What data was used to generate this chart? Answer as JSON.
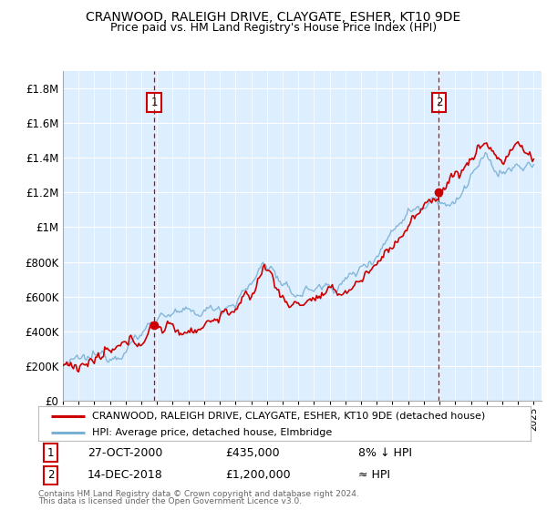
{
  "title1": "CRANWOOD, RALEIGH DRIVE, CLAYGATE, ESHER, KT10 9DE",
  "title2": "Price paid vs. HM Land Registry's House Price Index (HPI)",
  "legend_line1": "CRANWOOD, RALEIGH DRIVE, CLAYGATE, ESHER, KT10 9DE (detached house)",
  "legend_line2": "HPI: Average price, detached house, Elmbridge",
  "ann1_label": "1",
  "ann1_date": "27-OCT-2000",
  "ann1_price": "£435,000",
  "ann1_note": "8% ↓ HPI",
  "ann1_year": 2000.83,
  "ann1_value": 435000,
  "ann2_label": "2",
  "ann2_date": "14-DEC-2018",
  "ann2_price": "£1,200,000",
  "ann2_note": "≈ HPI",
  "ann2_year": 2018.96,
  "ann2_value": 1200000,
  "footnote1": "Contains HM Land Registry data © Crown copyright and database right 2024.",
  "footnote2": "This data is licensed under the Open Government Licence v3.0.",
  "red_color": "#cc0000",
  "blue_color": "#7ab0d4",
  "bg_color": "#ddeeff",
  "ylim": [
    0,
    1900000
  ],
  "yticks": [
    0,
    200000,
    400000,
    600000,
    800000,
    1000000,
    1200000,
    1400000,
    1600000,
    1800000
  ],
  "xmin": 1995,
  "xmax": 2025.5
}
